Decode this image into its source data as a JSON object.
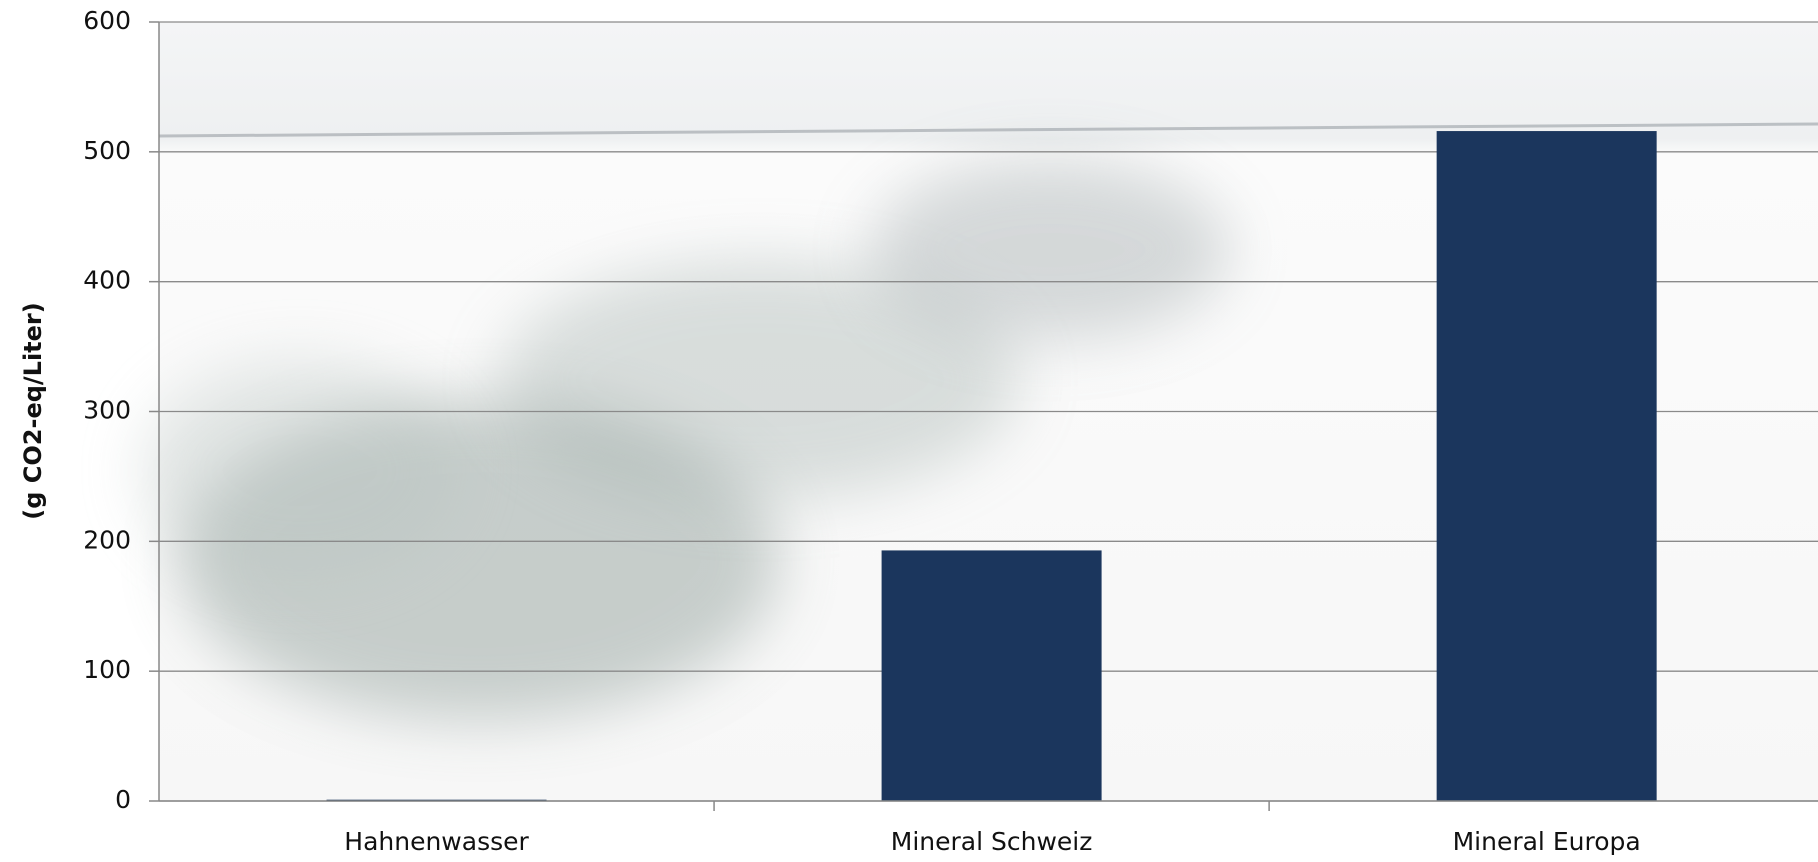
{
  "chart_data": {
    "type": "bar",
    "y_label": "(g CO2-eq/Liter)",
    "categories": [
      "Hahnenwasser",
      "Mineral Schweiz",
      "Mineral Europa"
    ],
    "values": [
      1,
      193,
      516
    ],
    "color": "#1b365d",
    "ylim": [
      0,
      600
    ],
    "yticks": [
      0,
      100,
      200,
      300,
      400,
      500,
      600
    ],
    "grid": true
  }
}
